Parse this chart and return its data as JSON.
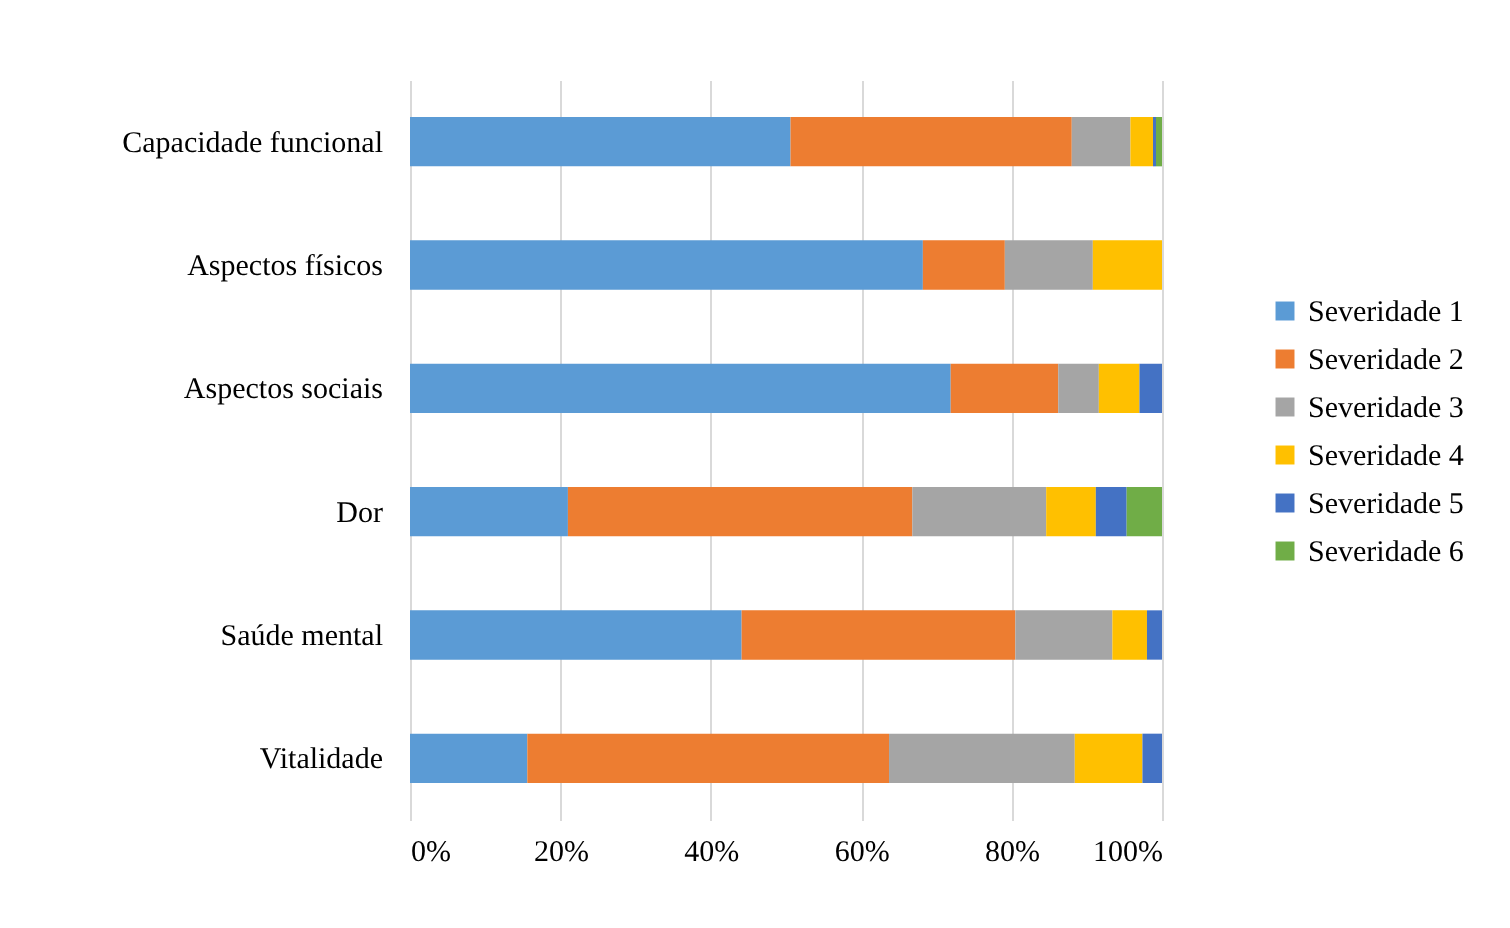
{
  "chart_data": {
    "type": "bar",
    "orientation": "horizontal",
    "stacked": true,
    "categories": [
      "Capacidade funcional",
      "Aspectos físicos",
      "Aspectos sociais",
      "Dor",
      "Saúde mental",
      "Vitalidade"
    ],
    "series": [
      {
        "name": "Severidade 1",
        "color": "#5b9bd5",
        "values": [
          50.6,
          68.2,
          71.9,
          21.0,
          44.1,
          15.6
        ]
      },
      {
        "name": "Severidade 2",
        "color": "#ed7d31",
        "values": [
          37.4,
          10.9,
          14.3,
          45.8,
          36.4,
          48.1
        ]
      },
      {
        "name": "Severidade 3",
        "color": "#a5a5a5",
        "values": [
          7.8,
          11.7,
          5.4,
          17.8,
          12.9,
          24.7
        ]
      },
      {
        "name": "Severidade 4",
        "color": "#ffc000",
        "values": [
          3.0,
          9.2,
          5.4,
          6.6,
          4.6,
          9.0
        ]
      },
      {
        "name": "Severidade 5",
        "color": "#4472c4",
        "values": [
          0.4,
          null,
          3.0,
          4.1,
          2.0,
          2.6
        ]
      },
      {
        "name": "Severidade 6",
        "color": "#70ad47",
        "values": [
          0.8,
          null,
          null,
          4.7,
          null,
          null
        ]
      }
    ],
    "xlim": [
      0,
      100
    ],
    "xticks": [
      {
        "value": 0,
        "label": "0%"
      },
      {
        "value": 20,
        "label": "20%"
      },
      {
        "value": 40,
        "label": "40%"
      },
      {
        "value": 60,
        "label": "60%"
      },
      {
        "value": 80,
        "label": "80%"
      },
      {
        "value": 100,
        "label": "100%"
      }
    ],
    "grid": "x",
    "legend": "right"
  }
}
